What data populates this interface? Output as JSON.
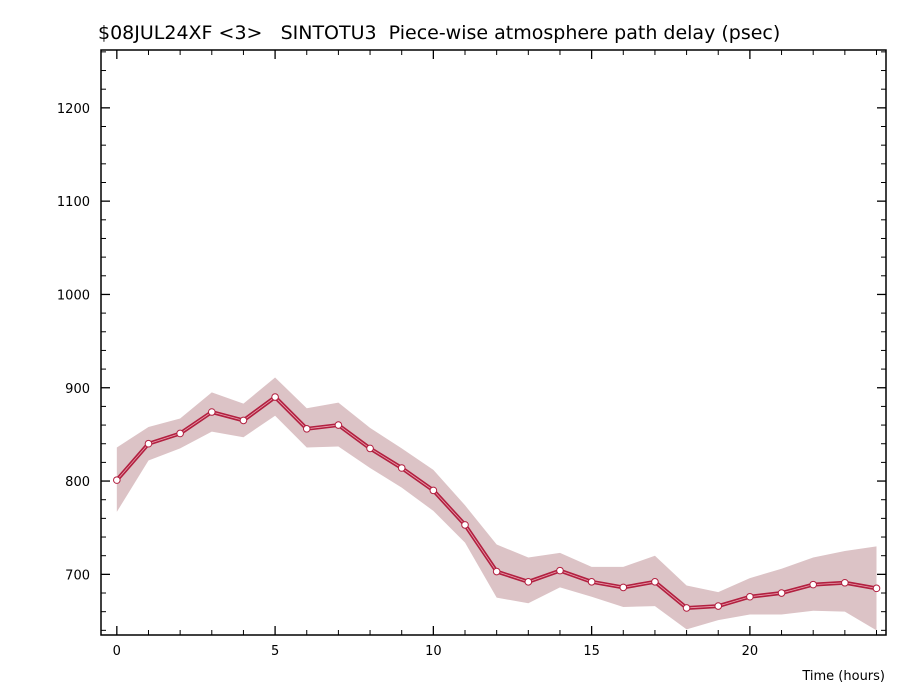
{
  "chart_data": {
    "type": "line",
    "title": "$08JUL24XF <3>   SINTOTU3  Piece-wise atmosphere path delay (psec)",
    "xlabel": "Time (hours)",
    "ylabel": "",
    "xlim": [
      -0.5,
      24.3
    ],
    "ylim": [
      635,
      1262
    ],
    "x_ticks": [
      0,
      5,
      10,
      15,
      20
    ],
    "y_ticks": [
      700,
      800,
      900,
      1000,
      1100,
      1200
    ],
    "grid": false,
    "colors": {
      "line": "#b22040",
      "band": "#dcc3c6",
      "marker_fill": "#ffffff"
    },
    "series": [
      {
        "x": [
          0,
          1,
          2,
          3,
          4,
          5,
          6,
          7,
          8,
          9,
          10,
          11,
          12,
          13,
          14,
          15,
          16,
          17,
          18,
          19,
          20,
          21,
          22,
          23,
          24
        ],
        "values": [
          801,
          840,
          851,
          874,
          865,
          890,
          856,
          860,
          835,
          814,
          790,
          753,
          703,
          692,
          704,
          692,
          686,
          692,
          664,
          666,
          676,
          680,
          689,
          691,
          685
        ],
        "lower": [
          767,
          822,
          835,
          853,
          847,
          870,
          836,
          837,
          814,
          793,
          768,
          734,
          675,
          669,
          686,
          676,
          665,
          666,
          641,
          651,
          657,
          657,
          661,
          660,
          640
        ],
        "upper": [
          836,
          858,
          867,
          895,
          883,
          911,
          878,
          884,
          857,
          835,
          812,
          774,
          732,
          718,
          723,
          708,
          708,
          720,
          688,
          681,
          696,
          706,
          718,
          725,
          730
        ]
      }
    ]
  }
}
